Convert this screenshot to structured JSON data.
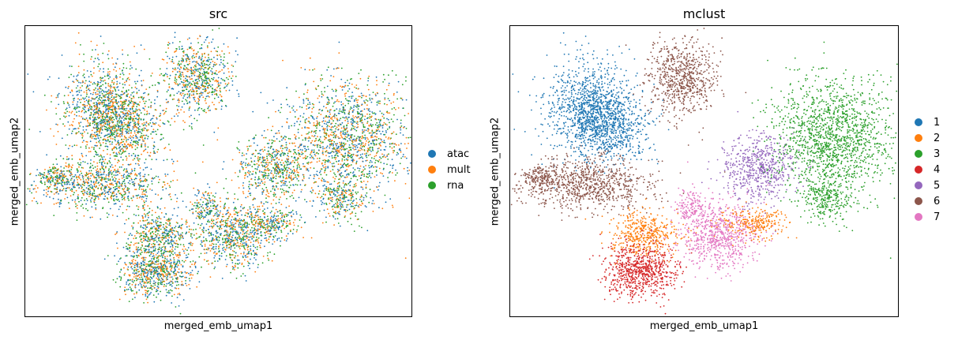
{
  "chart_data": [
    {
      "type": "scatter",
      "title": "src",
      "xlabel": "merged_emb_umap1",
      "ylabel": "merged_emb_umap2",
      "grid": false,
      "ticks": false,
      "legend_position": "right",
      "series": [
        {
          "name": "atac",
          "color": "#1f77b4"
        },
        {
          "name": "mult",
          "color": "#ff7f0e"
        },
        {
          "name": "rna",
          "color": "#2ca02c"
        }
      ]
    },
    {
      "type": "scatter",
      "title": "mclust",
      "xlabel": "merged_emb_umap1",
      "ylabel": "merged_emb_umap2",
      "grid": false,
      "ticks": false,
      "legend_position": "right",
      "series": [
        {
          "name": "1",
          "color": "#1f77b4"
        },
        {
          "name": "2",
          "color": "#ff7f0e"
        },
        {
          "name": "3",
          "color": "#2ca02c"
        },
        {
          "name": "4",
          "color": "#d62728"
        },
        {
          "name": "5",
          "color": "#9467bd"
        },
        {
          "name": "6",
          "color": "#8c564b"
        },
        {
          "name": "7",
          "color": "#e377c2"
        }
      ]
    }
  ]
}
